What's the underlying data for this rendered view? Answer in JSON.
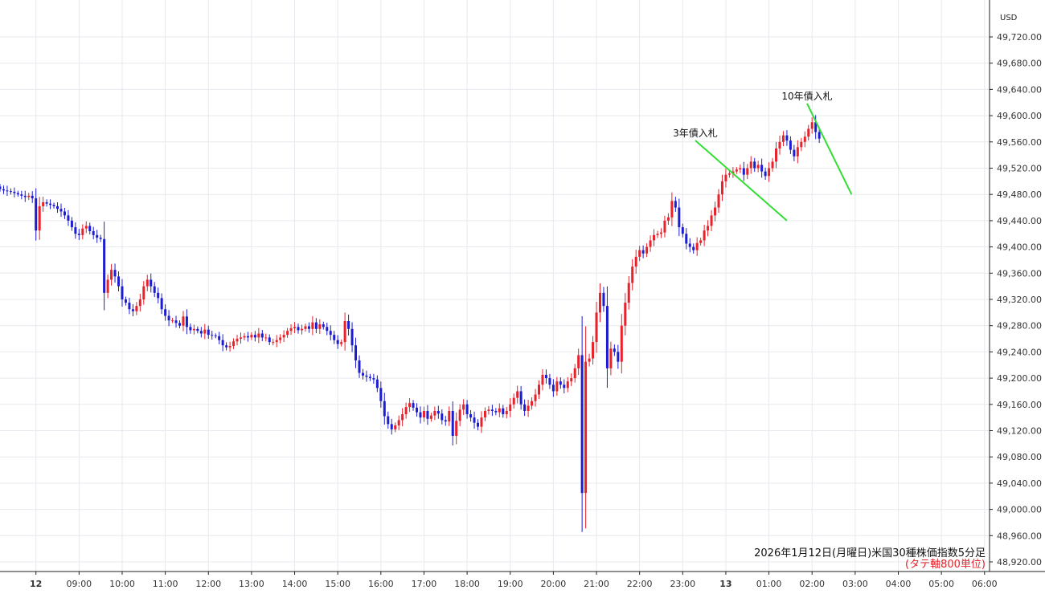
{
  "chart_data": {
    "type": "candlestick",
    "currency_label": "USD",
    "caption": "2026年1月12日(月曜日)米国30種株価指数5分足",
    "caption_note": "(タテ軸800単位)",
    "ylim": [
      48900,
      49760
    ],
    "y_ticks": [
      49720,
      49680,
      49640,
      49600,
      49560,
      49520,
      49480,
      49440,
      49400,
      49360,
      49320,
      49280,
      49240,
      49200,
      49160,
      49120,
      49080,
      49040,
      49000,
      48960,
      48920
    ],
    "y_tick_labels": [
      "49,720.00",
      "49,680.00",
      "49,640.00",
      "49,600.00",
      "49,560.00",
      "49,520.00",
      "49,480.00",
      "49,440.00",
      "49,400.00",
      "49,360.00",
      "49,320.00",
      "49,280.00",
      "49,240.00",
      "49,200.00",
      "49,160.00",
      "49,120.00",
      "49,080.00",
      "49,040.00",
      "49,000.00",
      "48,960.00",
      "48,920.00"
    ],
    "x_start": "08:10",
    "x_ticks": [
      {
        "label": "12",
        "bar": 10
      },
      {
        "label": "09:00",
        "bar": 22
      },
      {
        "label": "10:00",
        "bar": 34
      },
      {
        "label": "11:00",
        "bar": 46
      },
      {
        "label": "12:00",
        "bar": 58
      },
      {
        "label": "13:00",
        "bar": 70
      },
      {
        "label": "14:00",
        "bar": 82
      },
      {
        "label": "15:00",
        "bar": 94
      },
      {
        "label": "16:00",
        "bar": 106
      },
      {
        "label": "17:00",
        "bar": 118
      },
      {
        "label": "18:00",
        "bar": 130
      },
      {
        "label": "19:00",
        "bar": 142
      },
      {
        "label": "20:00",
        "bar": 154
      },
      {
        "label": "21:00",
        "bar": 166
      },
      {
        "label": "22:00",
        "bar": 178
      },
      {
        "label": "23:00",
        "bar": 190
      },
      {
        "label": "13",
        "bar": 202
      },
      {
        "label": "01:00",
        "bar": 214
      },
      {
        "label": "02:00",
        "bar": 226
      },
      {
        "label": "03:00",
        "bar": 238
      },
      {
        "label": "04:00",
        "bar": 250
      },
      {
        "label": "05:00",
        "bar": 262
      },
      {
        "label": "06:00",
        "bar": 274
      }
    ],
    "annotations": [
      {
        "text": "3年債入札",
        "bar": 219,
        "price": 49440
      },
      {
        "text": "10年債入札",
        "bar": 237,
        "price": 49480
      }
    ],
    "colors": {
      "up": "#e8212a",
      "down": "#1c1cd0",
      "annotation_line": "#33dd33",
      "grid": "#e6e9ee"
    },
    "closes": [
      49488,
      49486,
      49485,
      49484,
      49482,
      49480,
      49478,
      49476,
      49478,
      49474,
      49425,
      49462,
      49468,
      49466,
      49464,
      49462,
      49458,
      49454,
      49448,
      49440,
      49430,
      49420,
      49418,
      49428,
      49432,
      49424,
      49418,
      49414,
      49412,
      49330,
      49350,
      49365,
      49355,
      49340,
      49320,
      49315,
      49305,
      49302,
      49310,
      49320,
      49340,
      49350,
      49340,
      49330,
      49322,
      49305,
      49295,
      49288,
      49288,
      49284,
      49280,
      49294,
      49278,
      49273,
      49275,
      49272,
      49268,
      49274,
      49266,
      49265,
      49264,
      49258,
      49250,
      49247,
      49249,
      49256,
      49260,
      49262,
      49264,
      49262,
      49266,
      49262,
      49268,
      49262,
      49262,
      49255,
      49255,
      49258,
      49262,
      49266,
      49272,
      49276,
      49278,
      49273,
      49275,
      49279,
      49275,
      49285,
      49275,
      49282,
      49278,
      49272,
      49266,
      49258,
      49252,
      49255,
      49287,
      49275,
      49250,
      49227,
      49208,
      49204,
      49202,
      49200,
      49198,
      49185,
      49165,
      49142,
      49130,
      49122,
      49128,
      49136,
      49145,
      49156,
      49162,
      49155,
      49148,
      49140,
      49150,
      49138,
      49143,
      49150,
      49146,
      49136,
      49134,
      49150,
      49112,
      49135,
      49152,
      49160,
      49145,
      49140,
      49132,
      49126,
      49140,
      49150,
      49152,
      49150,
      49148,
      49154,
      49145,
      49150,
      49160,
      49170,
      49180,
      49160,
      49150,
      49158,
      49165,
      49175,
      49190,
      49205,
      49200,
      49190,
      49180,
      49195,
      49190,
      49185,
      49195,
      49200,
      49215,
      49235,
      49025,
      49225,
      49230,
      49255,
      49300,
      49330,
      49310,
      49215,
      49245,
      49240,
      49225,
      49280,
      49315,
      49345,
      49370,
      49385,
      49395,
      49390,
      49400,
      49410,
      49418,
      49420,
      49422,
      49440,
      49445,
      49470,
      49460,
      49430,
      49420,
      49405,
      49400,
      49395,
      49406,
      49410,
      49425,
      49432,
      49448,
      49460,
      49480,
      49500,
      49510,
      49512,
      49515,
      49518,
      49520,
      49510,
      49520,
      49530,
      49520,
      49525,
      49515,
      49508,
      49520,
      49530,
      49550,
      49560,
      49570,
      49562,
      49548,
      49538,
      49552,
      49560,
      49568,
      49580,
      49590,
      49575,
      49565
    ]
  }
}
